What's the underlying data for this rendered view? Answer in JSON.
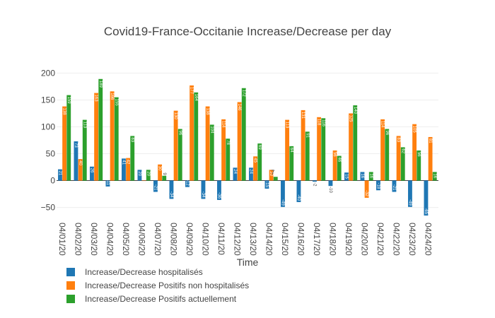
{
  "chart_data": {
    "type": "bar",
    "title": "Covid19-France-Occitanie Increase/Decrease per day",
    "xlabel": "Time",
    "ylabel": "",
    "ylim": [
      -65,
      215
    ],
    "yticks": [
      -50,
      0,
      50,
      100,
      150,
      200
    ],
    "ytick_labels": [
      "−50",
      "0",
      "50",
      "100",
      "150",
      "200"
    ],
    "grid": true,
    "legend_position": "bottom-left",
    "categories": [
      "04/01/20",
      "04/02/20",
      "04/03/20",
      "04/04/20",
      "04/05/20",
      "04/06/20",
      "04/07/20",
      "04/08/20",
      "04/09/20",
      "04/10/20",
      "04/11/20",
      "04/12/20",
      "04/13/20",
      "04/14/20",
      "04/15/20",
      "04/16/20",
      "04/17/20",
      "04/18/20",
      "04/19/20",
      "04/20/20",
      "04/21/20",
      "04/22/20",
      "04/23/20",
      "04/24/20"
    ],
    "series": [
      {
        "name": "Increase/Decrease hospitalisés",
        "color": "#1f77b4",
        "values": [
          21,
          73,
          26,
          -11,
          41,
          20,
          -21,
          -34,
          -12,
          -34,
          -36,
          24,
          24,
          -15,
          -49,
          -40,
          -2,
          -10,
          15,
          16,
          -18,
          -21,
          -49,
          -65
        ]
      },
      {
        "name": "Increase/Decrease Positifs non hospitalisés",
        "color": "#ff7f0e",
        "values": [
          138,
          40,
          163,
          166,
          42,
          0,
          30,
          130,
          177,
          138,
          114,
          146,
          45,
          20,
          113,
          131,
          118,
          56,
          125,
          -32,
          114,
          83,
          105,
          81
        ]
      },
      {
        "name": "Increase/Decrease Positifs actuellement",
        "color": "#2ca02c",
        "values": [
          159,
          113,
          189,
          155,
          83,
          20,
          9,
          96,
          164,
          104,
          78,
          172,
          69,
          7,
          64,
          91,
          116,
          46,
          140,
          16,
          96,
          62,
          56,
          16
        ]
      }
    ],
    "outside_label": "7"
  }
}
